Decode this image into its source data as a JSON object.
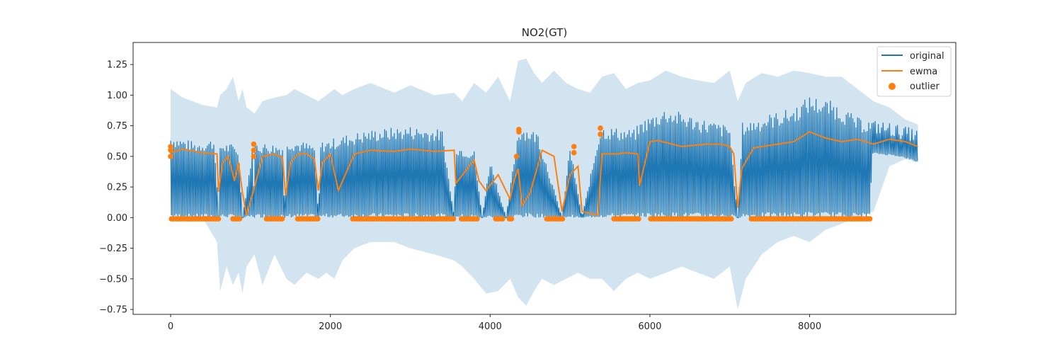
{
  "chart_data": {
    "type": "line",
    "title": "NO2(GT)",
    "xlabel": "",
    "ylabel": "",
    "xlim": [
      -470,
      9830
    ],
    "ylim": [
      -0.79,
      1.43
    ],
    "x_ticks": [
      0,
      2000,
      4000,
      6000,
      8000
    ],
    "x_tick_labels": [
      "0",
      "2000",
      "4000",
      "6000",
      "8000"
    ],
    "y_ticks": [
      -0.75,
      -0.5,
      -0.25,
      0.0,
      0.25,
      0.5,
      0.75,
      1.0,
      1.25
    ],
    "y_tick_labels": [
      "−0.75",
      "−0.50",
      "−0.25",
      "0.00",
      "0.25",
      "0.50",
      "0.75",
      "1.00",
      "1.25"
    ],
    "legend": {
      "position": "top-right",
      "entries": [
        {
          "label": "original",
          "kind": "line",
          "color": "#1f77b4"
        },
        {
          "label": "ewma",
          "kind": "line",
          "color": "#ff7f0e"
        },
        {
          "label": "outlier",
          "kind": "marker",
          "color": "#ff7f0e"
        }
      ]
    },
    "colors": {
      "original": "#1f77b4",
      "ewma": "#ff7f0e",
      "outlier": "#ff7f0e",
      "band": "#1f77b4"
    },
    "series": [
      {
        "name": "original",
        "style": "dense-oscillating",
        "x_range": [
          0,
          9357
        ],
        "upper_envelope": [
          [
            0,
            0.68
          ],
          [
            300,
            0.62
          ],
          [
            550,
            0.65
          ],
          [
            600,
            0.0
          ],
          [
            620,
            0.62
          ],
          [
            800,
            0.6
          ],
          [
            850,
            0.58
          ],
          [
            900,
            0.0
          ],
          [
            1030,
            0.6
          ],
          [
            1050,
            0.0
          ],
          [
            1060,
            0.62
          ],
          [
            1400,
            0.6
          ],
          [
            1430,
            0.0
          ],
          [
            1460,
            0.65
          ],
          [
            1800,
            0.6
          ],
          [
            1850,
            0.0
          ],
          [
            1880,
            0.62
          ],
          [
            2200,
            0.68
          ],
          [
            2500,
            0.72
          ],
          [
            3000,
            0.75
          ],
          [
            3400,
            0.72
          ],
          [
            3550,
            0.0
          ],
          [
            3570,
            0.6
          ],
          [
            3800,
            0.55
          ],
          [
            3900,
            0.0
          ],
          [
            4000,
            0.48
          ],
          [
            4200,
            0.0
          ],
          [
            4350,
            0.72
          ],
          [
            4400,
            0.75
          ],
          [
            4600,
            0.7
          ],
          [
            4900,
            0.0
          ],
          [
            5000,
            0.6
          ],
          [
            5150,
            0.0
          ],
          [
            5370,
            0.72
          ],
          [
            5400,
            0.75
          ],
          [
            5800,
            0.72
          ],
          [
            5900,
            0.8
          ],
          [
            6200,
            0.9
          ],
          [
            6600,
            0.82
          ],
          [
            7000,
            0.75
          ],
          [
            7100,
            0.0
          ],
          [
            7160,
            0.78
          ],
          [
            7500,
            0.85
          ],
          [
            7800,
            0.9
          ],
          [
            8000,
            1.0
          ],
          [
            8300,
            0.95
          ],
          [
            8600,
            0.82
          ],
          [
            9000,
            0.78
          ],
          [
            9357,
            0.72
          ]
        ],
        "lower_envelope": [
          [
            0,
            0.0
          ],
          [
            8760,
            0.0
          ],
          [
            8780,
            0.52
          ],
          [
            9100,
            0.5
          ],
          [
            9357,
            0.45
          ]
        ]
      },
      {
        "name": "ewma",
        "x": [
          0,
          150,
          400,
          580,
          600,
          650,
          720,
          800,
          850,
          900,
          950,
          1050,
          1150,
          1300,
          1400,
          1440,
          1500,
          1600,
          1700,
          1800,
          1850,
          1900,
          2000,
          2100,
          2300,
          2500,
          2800,
          3000,
          3300,
          3550,
          3570,
          3800,
          3860,
          3950,
          4100,
          4250,
          4300,
          4350,
          4400,
          4500,
          4650,
          4800,
          4900,
          5000,
          5100,
          5150,
          5350,
          5400,
          5600,
          5700,
          5850,
          5870,
          6000,
          6100,
          6400,
          6700,
          6900,
          7000,
          7050,
          7100,
          7150,
          7300,
          7600,
          7800,
          8000,
          8200,
          8400,
          8600,
          8800,
          9000,
          9200,
          9357
        ],
        "values": [
          0.53,
          0.56,
          0.53,
          0.52,
          0.21,
          0.45,
          0.5,
          0.3,
          0.45,
          0.2,
          0.02,
          0.25,
          0.5,
          0.52,
          0.49,
          0.18,
          0.45,
          0.52,
          0.52,
          0.48,
          0.22,
          0.45,
          0.52,
          0.22,
          0.52,
          0.55,
          0.54,
          0.56,
          0.54,
          0.55,
          0.28,
          0.47,
          0.3,
          0.22,
          0.35,
          0.15,
          0.3,
          0.4,
          0.1,
          0.2,
          0.55,
          0.5,
          0.05,
          0.35,
          0.42,
          0.05,
          0.02,
          0.52,
          0.52,
          0.53,
          0.52,
          0.26,
          0.62,
          0.63,
          0.58,
          0.6,
          0.6,
          0.58,
          0.52,
          0.08,
          0.4,
          0.57,
          0.6,
          0.62,
          0.7,
          0.65,
          0.62,
          0.64,
          0.6,
          0.64,
          0.62,
          0.58
        ]
      },
      {
        "name": "band",
        "x": [
          0,
          150,
          400,
          580,
          620,
          700,
          780,
          850,
          900,
          950,
          1050,
          1150,
          1300,
          1450,
          1550,
          1700,
          1850,
          1950,
          2050,
          2150,
          2300,
          2500,
          2800,
          3000,
          3300,
          3550,
          3650,
          3800,
          3950,
          4100,
          4250,
          4350,
          4450,
          4550,
          4650,
          4800,
          4950,
          5100,
          5250,
          5400,
          5550,
          5700,
          5850,
          6000,
          6200,
          6400,
          6600,
          6800,
          7000,
          7100,
          7200,
          7400,
          7600,
          7800,
          8000,
          8200,
          8400,
          8600,
          8800,
          9000,
          9200,
          9357
        ],
        "upper": [
          1.05,
          0.98,
          0.92,
          0.9,
          1.0,
          1.05,
          1.15,
          0.95,
          1.05,
          0.9,
          0.85,
          0.95,
          0.98,
          1.0,
          1.05,
          1.0,
          0.95,
          1.0,
          1.05,
          1.0,
          1.05,
          1.1,
          1.02,
          1.08,
          1.0,
          1.02,
          0.95,
          1.1,
          1.02,
          1.15,
          0.95,
          1.28,
          1.3,
          1.18,
          1.1,
          1.2,
          1.1,
          1.05,
          1.02,
          1.15,
          1.18,
          1.05,
          1.1,
          1.12,
          1.2,
          1.15,
          1.12,
          1.1,
          1.2,
          0.95,
          1.1,
          1.18,
          1.15,
          1.2,
          1.18,
          1.15,
          1.15,
          1.05,
          0.95,
          0.9,
          0.8,
          0.76
        ],
        "lower": [
          0.02,
          0.0,
          0.0,
          -0.2,
          -0.6,
          -0.4,
          -0.55,
          -0.45,
          -0.62,
          -0.4,
          -0.3,
          -0.55,
          -0.3,
          -0.5,
          -0.55,
          -0.45,
          -0.5,
          -0.45,
          -0.5,
          -0.35,
          -0.25,
          -0.2,
          -0.2,
          -0.25,
          -0.3,
          -0.35,
          -0.4,
          -0.5,
          -0.62,
          -0.6,
          -0.5,
          -0.65,
          -0.72,
          -0.6,
          -0.5,
          -0.55,
          -0.5,
          -0.45,
          -0.5,
          -0.5,
          -0.6,
          -0.5,
          -0.45,
          -0.5,
          -0.45,
          -0.4,
          -0.45,
          -0.5,
          -0.4,
          -0.75,
          -0.5,
          -0.3,
          -0.2,
          -0.15,
          -0.2,
          -0.1,
          -0.05,
          0.0,
          0.05,
          0.42,
          0.48,
          0.45
        ]
      },
      {
        "name": "outlier",
        "type": "scatter",
        "points": [
          [
            0,
            0.58
          ],
          [
            0,
            0.55
          ],
          [
            0,
            0.5
          ],
          [
            1040,
            0.6
          ],
          [
            1040,
            0.55
          ],
          [
            1040,
            0.5
          ],
          [
            4360,
            0.72
          ],
          [
            4360,
            0.7
          ],
          [
            4330,
            0.5
          ],
          [
            5050,
            0.58
          ],
          [
            5050,
            0.53
          ],
          [
            5380,
            0.73
          ],
          [
            5380,
            0.68
          ]
        ],
        "zero_runs": [
          [
            10,
            600
          ],
          [
            780,
            880
          ],
          [
            1200,
            1420
          ],
          [
            1590,
            1860
          ],
          [
            2280,
            3550
          ],
          [
            3640,
            3860
          ],
          [
            4070,
            4160
          ],
          [
            4240,
            4290
          ],
          [
            4710,
            4920
          ],
          [
            5550,
            5870
          ],
          [
            6010,
            7040
          ],
          [
            7270,
            8770
          ]
        ],
        "zero_run_value": -0.01
      }
    ]
  }
}
